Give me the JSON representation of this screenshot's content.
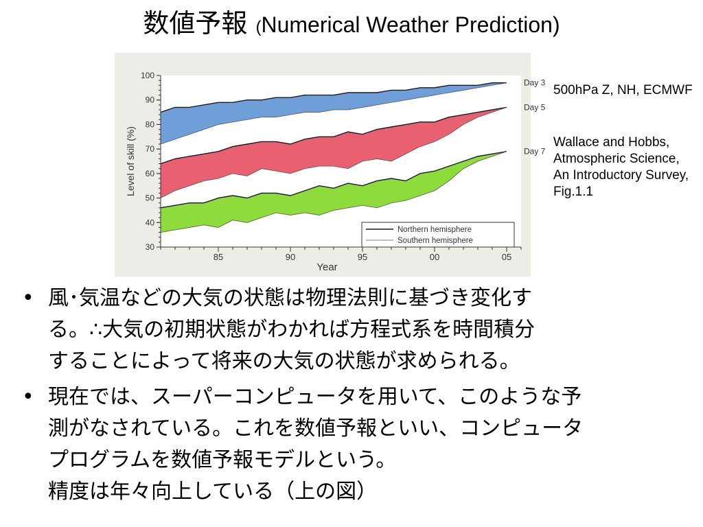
{
  "slide": {
    "title_ja": "数値予報",
    "title_open": "(",
    "title_en": "Numerical Weather Prediction)"
  },
  "caption": {
    "line1": "500hPa Z, NH, ECMWF",
    "line2": "Wallace and Hobbs, Atmospheric Science, An Introductory Survey, Fig.1.1"
  },
  "bullets": [
    {
      "mark": "•",
      "lines": [
        "風･気温などの大気の状態は物理法則に基づき変化す",
        "る。∴大気の初期状態がわかれば方程式系を時間積分",
        "することによって将来の大気の状態が求められる。"
      ]
    },
    {
      "mark": "•",
      "lines": [
        "現在では、スーパーコンピュータを用いて、このような予",
        "測がなされている。これを数値予報といい、コンピュータ",
        "プログラムを数値予報モデルという。",
        "精度は年々向上している（上の図）"
      ]
    }
  ],
  "chart_data": {
    "type": "area",
    "xlabel": "Year",
    "ylabel": "Level of skill (%)",
    "xlim": [
      1981,
      2006
    ],
    "ylim": [
      30,
      100
    ],
    "x_ticks": [
      85,
      90,
      95,
      "00",
      "05"
    ],
    "y_ticks": [
      30,
      40,
      50,
      60,
      70,
      80,
      90,
      100
    ],
    "legend": {
      "position": "bottom-right",
      "entries": [
        "Northern hemisphere",
        "Southern hemisphere"
      ]
    },
    "x": [
      1981,
      1982,
      1983,
      1984,
      1985,
      1986,
      1987,
      1988,
      1989,
      1990,
      1991,
      1992,
      1993,
      1994,
      1995,
      1996,
      1997,
      1998,
      1999,
      2000,
      2001,
      2002,
      2003,
      2004,
      2005
    ],
    "series": [
      {
        "name": "Day 3",
        "color": "#6f9fd8",
        "northern": [
          85,
          87,
          87,
          88,
          89,
          89,
          90,
          90,
          91,
          91,
          92,
          92,
          92,
          93,
          93,
          93,
          94,
          94,
          95,
          95,
          96,
          96,
          96,
          97,
          97
        ],
        "southern": [
          72,
          74,
          76,
          78,
          80,
          81,
          82,
          83,
          83,
          84,
          85,
          85,
          86,
          86,
          87,
          88,
          89,
          90,
          91,
          92,
          93,
          94,
          95,
          96,
          97
        ]
      },
      {
        "name": "Day 5",
        "color": "#e96070",
        "northern": [
          64,
          66,
          67,
          68,
          69,
          71,
          72,
          73,
          73,
          72,
          74,
          75,
          75,
          77,
          76,
          78,
          79,
          80,
          81,
          81,
          83,
          84,
          85,
          86,
          87
        ],
        "southern": [
          50,
          53,
          55,
          57,
          58,
          60,
          59,
          62,
          61,
          60,
          62,
          63,
          63,
          62,
          65,
          66,
          65,
          68,
          71,
          73,
          76,
          80,
          83,
          85,
          87
        ]
      },
      {
        "name": "Day 7",
        "color": "#8edb3c",
        "northern": [
          46,
          47,
          48,
          48,
          50,
          51,
          50,
          52,
          52,
          51,
          53,
          55,
          54,
          56,
          55,
          57,
          58,
          57,
          60,
          61,
          63,
          65,
          67,
          68,
          69
        ],
        "southern": [
          36,
          37,
          38,
          39,
          38,
          41,
          40,
          42,
          44,
          43,
          44,
          43,
          45,
          46,
          47,
          46,
          48,
          49,
          51,
          53,
          57,
          62,
          65,
          67,
          69
        ]
      }
    ]
  }
}
